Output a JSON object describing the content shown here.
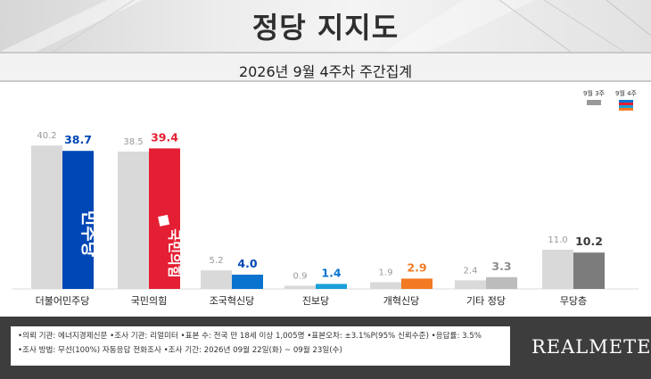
{
  "title": "정당 지지도",
  "subtitle": "2026년 9월 4주차 주간집계",
  "legend": {
    "prev": "9월 3주",
    "curr": "9월 4주"
  },
  "colors": {
    "prev_bar": "#d9d9d9",
    "legend_prev": "#9a9a9a",
    "label_prev": "#999999",
    "minju": "#0047b6",
    "ppp": "#e41f33",
    "jokuk": "#0a73cf",
    "jinbo": "#1aa0d8",
    "gaehyuk": "#f17a23",
    "others": "#bcbcbc",
    "independent": "#7c7c7c",
    "label_others": "#8e8e8e",
    "label_independent": "#3a3a3a"
  },
  "logos": {
    "minju": "더불어민주당",
    "ppp": "국민의힘"
  },
  "chart_data": {
    "type": "bar",
    "categories": [
      "더불어민주당",
      "국민의힘",
      "조국혁신당",
      "진보당",
      "개혁신당",
      "기타 정당",
      "무당층"
    ],
    "series": [
      {
        "name": "9월 3주",
        "values": [
          40.2,
          38.5,
          5.2,
          0.9,
          1.9,
          2.4,
          11.0
        ]
      },
      {
        "name": "9월 4주",
        "values": [
          38.7,
          39.4,
          4.0,
          1.4,
          2.9,
          3.3,
          10.2
        ]
      }
    ],
    "value_labels": {
      "prev": [
        "40.2",
        "38.5",
        "5.2",
        "0.9",
        "1.9",
        "2.4",
        "11.0"
      ],
      "curr": [
        "38.7",
        "39.4",
        "4.0",
        "1.4",
        "2.9",
        "3.3",
        "10.2"
      ]
    },
    "ylim": [
      0,
      45
    ]
  },
  "footer": {
    "line1": "•의뢰 기관: 에너지경제신문  •조사 기관: 리얼미터 •표본 수: 전국 만 18세 이상 1,005명 •표본오차: ±3.1%P(95% 신뢰수준) •응답률: 3.5%",
    "line2": "•조사 방법: 무선(100%) 자동응답 전화조사  •조사 기간: 2026년 09월 22일(화) ~ 09월 23일(수)",
    "brand": "REALMETER"
  }
}
